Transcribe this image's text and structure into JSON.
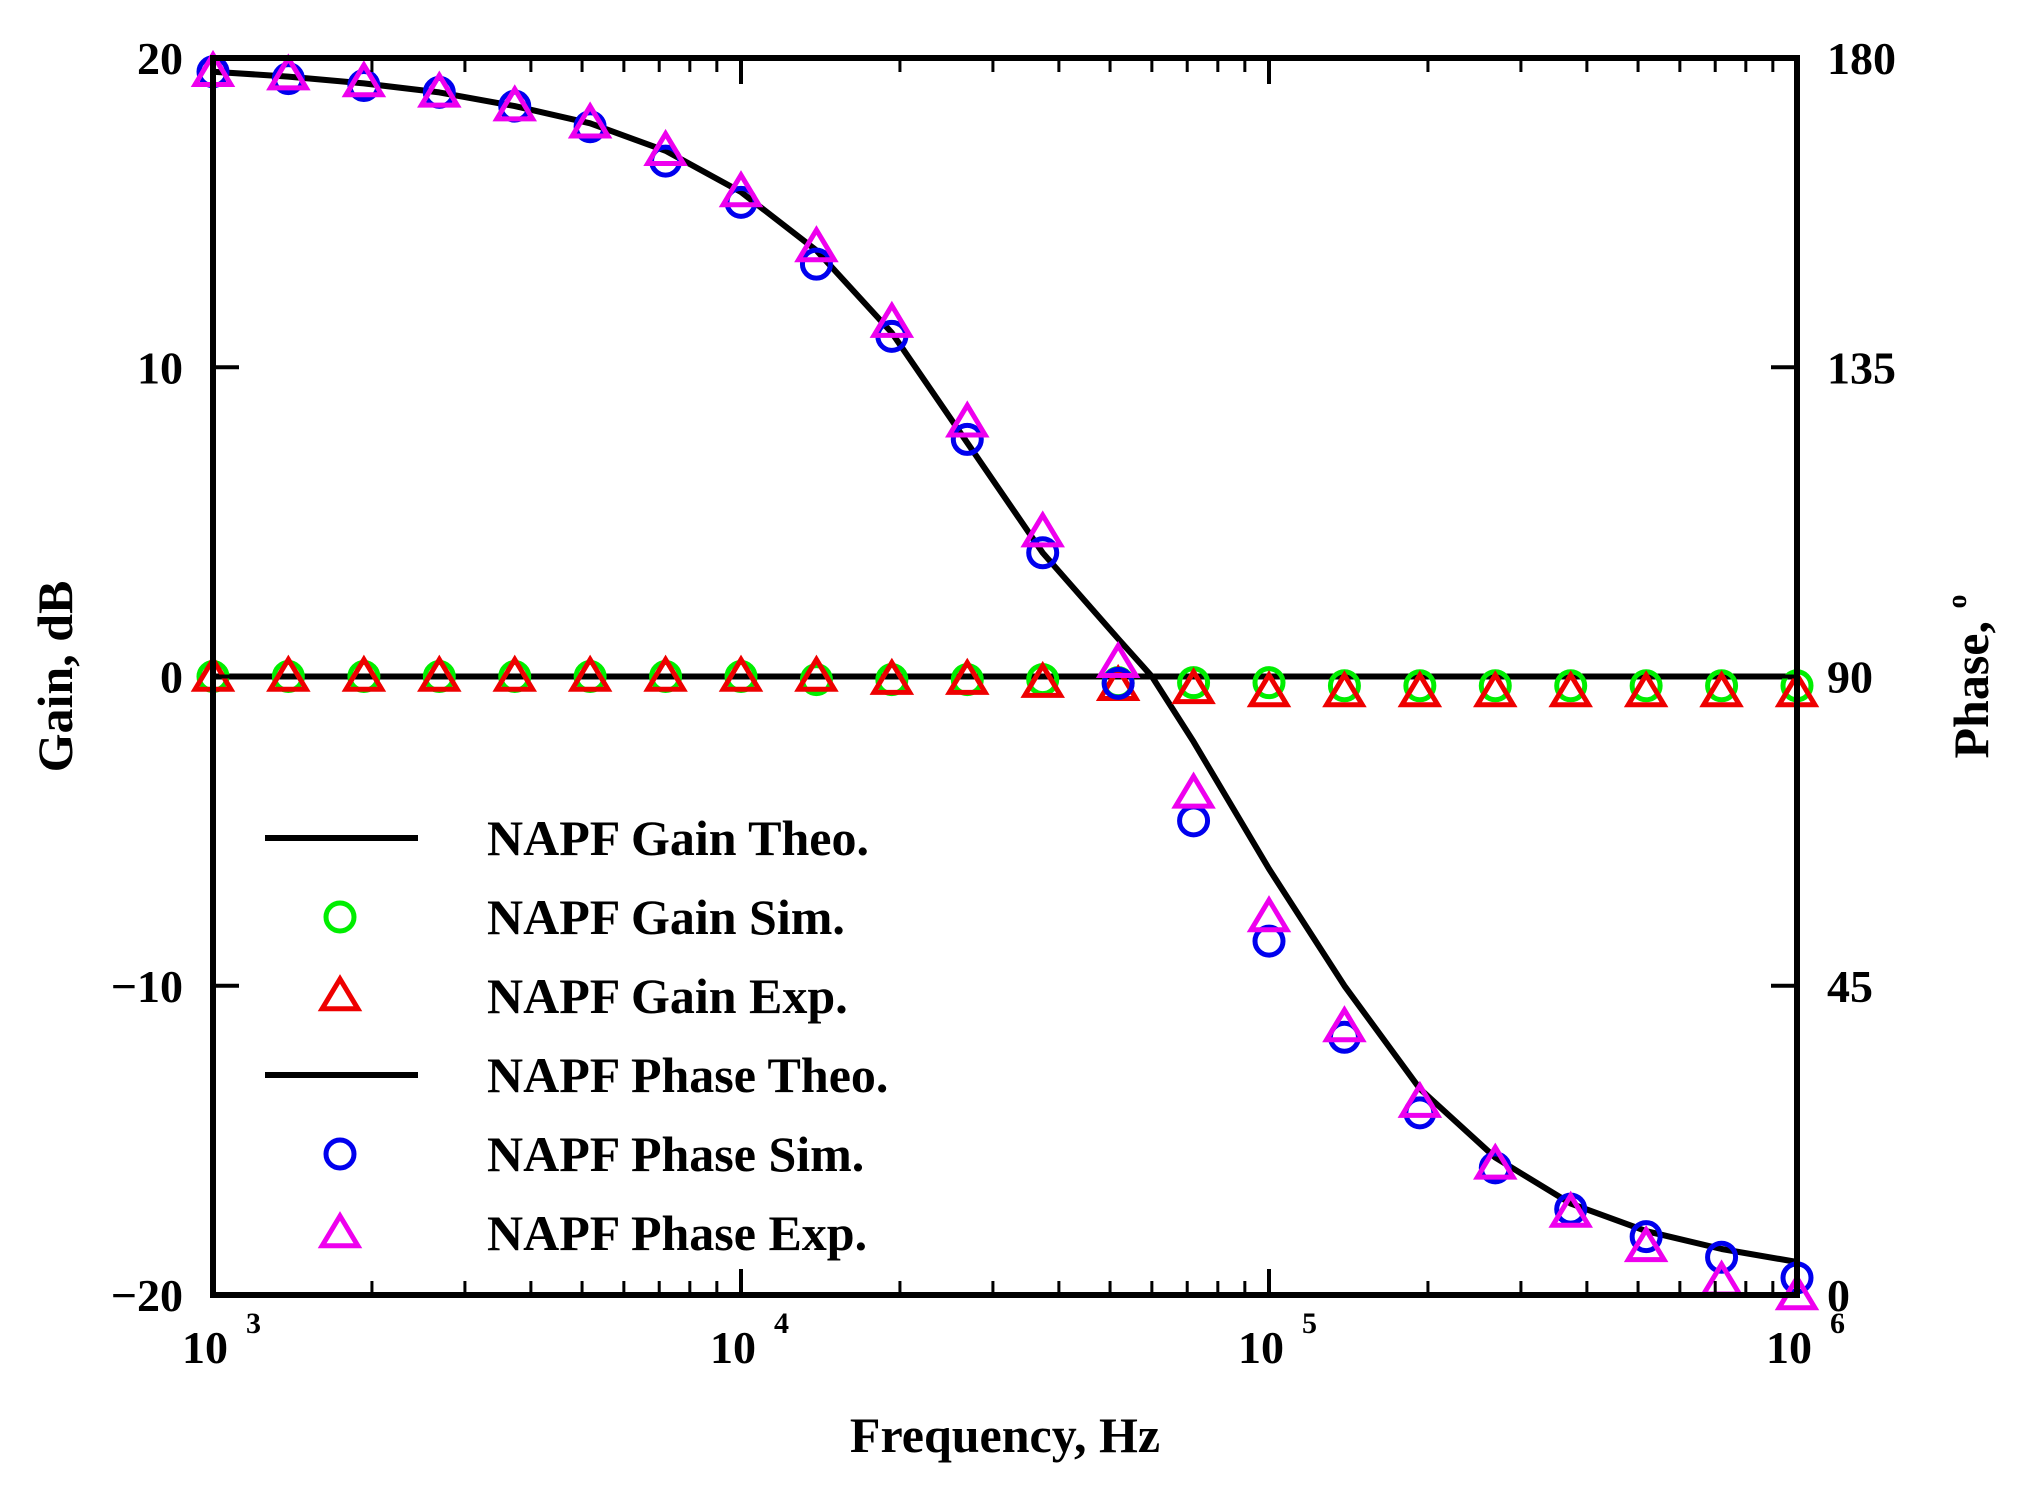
{
  "chart_data": {
    "type": "line",
    "xlabel": "Frequency, Hz",
    "ylabel": "Gain, dB",
    "y2label": "Phase, ",
    "y2label_superscript": "o",
    "x_scale": "log",
    "xlim": [
      1000,
      1000000
    ],
    "ylim": [
      -20,
      20
    ],
    "y2lim": [
      0,
      180
    ],
    "x_ticks": [
      {
        "value": 1000,
        "base": "10",
        "exp": "3"
      },
      {
        "value": 10000,
        "base": "10",
        "exp": "4"
      },
      {
        "value": 100000,
        "base": "10",
        "exp": "5"
      },
      {
        "value": 1000000,
        "base": "10",
        "exp": "6"
      }
    ],
    "y_ticks": [
      {
        "value": 20,
        "label": "20"
      },
      {
        "value": 10,
        "label": "10"
      },
      {
        "value": 0,
        "label": "0"
      },
      {
        "value": -10,
        "label": "−10"
      },
      {
        "value": -20,
        "label": "−20"
      }
    ],
    "y2_ticks": [
      {
        "value": 180,
        "label": "180"
      },
      {
        "value": 135,
        "label": "135"
      },
      {
        "value": 90,
        "label": "90"
      },
      {
        "value": 45,
        "label": "45"
      },
      {
        "value": 0,
        "label": "0"
      }
    ],
    "grid": false,
    "legend_position": "lower-left",
    "series": [
      {
        "name": "NAPF Gain Theo.",
        "style": "line",
        "color": "#000000",
        "axis": "left",
        "x": [
          1000,
          100000,
          1000000
        ],
        "y": [
          0,
          0,
          0
        ]
      },
      {
        "name": "NAPF Gain Sim.",
        "style": "circle",
        "color": "#00ee00",
        "axis": "left",
        "x": [
          1000,
          1389,
          1931,
          2683,
          3728,
          5179,
          7197,
          10000,
          13895,
          19307,
          26827,
          37276,
          51795,
          71969,
          100000,
          138950,
          193070,
          268270,
          372760,
          517950,
          719690,
          1000000
        ],
        "y": [
          0,
          0,
          0,
          0,
          0,
          0,
          0,
          0,
          -0.1,
          -0.1,
          -0.1,
          -0.1,
          -0.2,
          -0.2,
          -0.2,
          -0.3,
          -0.3,
          -0.3,
          -0.3,
          -0.3,
          -0.3,
          -0.3
        ]
      },
      {
        "name": "NAPF Gain Exp.",
        "style": "triangle",
        "color": "#ee0000",
        "axis": "left",
        "x": [
          1000,
          1389,
          1931,
          2683,
          3728,
          5179,
          7197,
          10000,
          13895,
          19307,
          26827,
          37276,
          51795,
          71969,
          100000,
          138950,
          193070,
          268270,
          372760,
          517950,
          719690,
          1000000
        ],
        "y": [
          0,
          0,
          0,
          0,
          0,
          0,
          0,
          0,
          0,
          -0.1,
          -0.1,
          -0.2,
          -0.3,
          -0.4,
          -0.5,
          -0.5,
          -0.5,
          -0.5,
          -0.5,
          -0.5,
          -0.5,
          -0.5
        ]
      },
      {
        "name": "NAPF Phase Theo.",
        "style": "line",
        "color": "#000000",
        "axis": "right",
        "x": [
          1000,
          1389,
          1931,
          2683,
          3728,
          5179,
          7197,
          10000,
          13895,
          19307,
          26827,
          37276,
          51795,
          60000,
          71969,
          100000,
          138950,
          193070,
          268270,
          372760,
          517950,
          719690,
          1000000
        ],
        "y": [
          178,
          177.3,
          176.3,
          175,
          173,
          170.5,
          166.5,
          160.5,
          152,
          140,
          124,
          108,
          95.5,
          90,
          80.5,
          62,
          45,
          30,
          20,
          13.3,
          9.3,
          6.7,
          4.8
        ]
      },
      {
        "name": "NAPF Phase Sim.",
        "style": "circle",
        "color": "#0000ee",
        "axis": "right",
        "x": [
          1000,
          1389,
          1931,
          2683,
          3728,
          5179,
          7197,
          10000,
          13895,
          19307,
          26827,
          37276,
          51795,
          71969,
          100000,
          138950,
          193070,
          268270,
          372760,
          517950,
          719690,
          1000000
        ],
        "y": [
          178,
          177,
          176,
          175,
          173,
          170,
          165,
          159,
          150,
          139.5,
          124.5,
          108,
          89,
          69,
          51.5,
          37.5,
          26.5,
          18.5,
          12.5,
          8.5,
          5.5,
          2.5
        ]
      },
      {
        "name": "NAPF Phase Exp.",
        "style": "triangle",
        "color": "#ee00ee",
        "axis": "right",
        "x": [
          1000,
          1389,
          1931,
          2683,
          3728,
          5179,
          7197,
          10000,
          13895,
          19307,
          26827,
          37276,
          51795,
          71969,
          100000,
          138950,
          193070,
          268270,
          372760,
          517950,
          719690,
          1000000
        ],
        "y": [
          178,
          177.5,
          176.5,
          175,
          173,
          170.5,
          166.5,
          160.5,
          152.5,
          141.5,
          127,
          111,
          92,
          73,
          55,
          39,
          28,
          19,
          12,
          7,
          2,
          0
        ]
      }
    ]
  }
}
